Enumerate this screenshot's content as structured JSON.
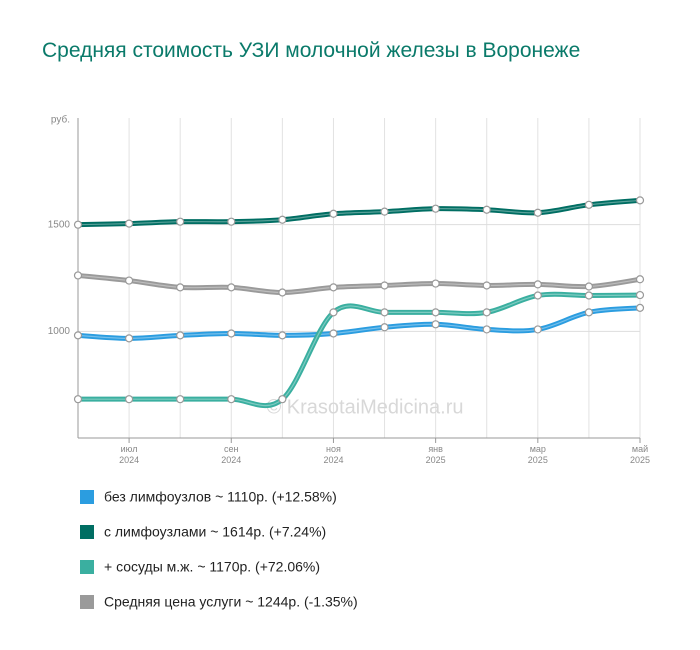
{
  "chart_data": {
    "type": "line",
    "title": "Средняя стоимость УЗИ молочной железы в Воронеже",
    "y_label": "руб.",
    "watermark": "© KrasotaiMedicina.ru",
    "categories": [
      null,
      "июл 2024",
      null,
      "сен 2024",
      null,
      "ноя 2024",
      null,
      "янв 2025",
      null,
      "мар 2025",
      null,
      "май 2025"
    ],
    "ylim": [
      500,
      2000
    ],
    "yticks": [
      1000,
      1500
    ],
    "grid": true,
    "series": [
      {
        "name": "без лимфоузлов ~ 1110р. (+12.58%)",
        "color": "#2b9de0",
        "values": [
          981,
          967,
          981,
          990,
          981,
          990,
          1019,
          1033,
          1009,
          1009,
          1089,
          1110
        ]
      },
      {
        "name": "с лимфоузлами ~ 1614р. (+7.24%)",
        "color": "#006e63",
        "values": [
          1500,
          1505,
          1514,
          1514,
          1523,
          1551,
          1561,
          1575,
          1570,
          1556,
          1593,
          1614
        ]
      },
      {
        "name": "+ сосуды м.ж. ~ 1170р. (+72.06%)",
        "color": "#3aafa0",
        "values": [
          682,
          682,
          682,
          682,
          682,
          1089,
          1089,
          1089,
          1089,
          1168,
          1168,
          1170
        ]
      },
      {
        "name": "Средняя цена услуги ~ 1244р. (-1.35%)",
        "color": "#9a9a9a",
        "values": [
          1262,
          1238,
          1206,
          1206,
          1182,
          1206,
          1215,
          1224,
          1215,
          1220,
          1210,
          1244
        ]
      }
    ]
  }
}
